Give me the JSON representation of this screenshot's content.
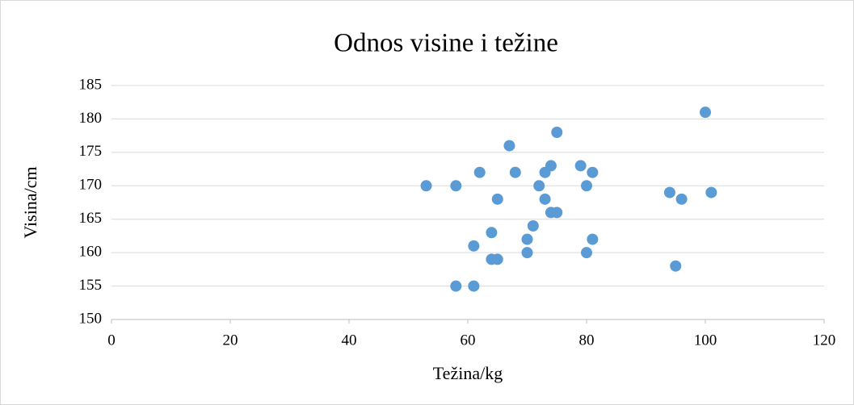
{
  "chart_data": {
    "type": "scatter",
    "title": "Odnos visine i težine",
    "x_label": "Težina/kg",
    "y_label": "Visina/cm",
    "xlim": [
      0,
      120
    ],
    "xticks": [
      0,
      20,
      40,
      60,
      80,
      100,
      120
    ],
    "ylim": [
      150,
      185
    ],
    "yticks": [
      150,
      155,
      160,
      165,
      170,
      175,
      180,
      185
    ],
    "grid": true,
    "color": "#5b9bd5",
    "x": [
      53,
      58,
      58,
      61,
      61,
      62,
      64,
      64,
      65,
      65,
      67,
      68,
      70,
      70,
      71,
      72,
      73,
      73,
      74,
      74,
      75,
      75,
      79,
      80,
      80,
      81,
      81,
      94,
      95,
      96,
      100,
      101
    ],
    "values": [
      170,
      170,
      155,
      155,
      161,
      172,
      163,
      159,
      159,
      168,
      176,
      172,
      162,
      160,
      164,
      170,
      168,
      172,
      173,
      166,
      166,
      178,
      173,
      170,
      160,
      172,
      162,
      169,
      158,
      168,
      181,
      169
    ]
  }
}
